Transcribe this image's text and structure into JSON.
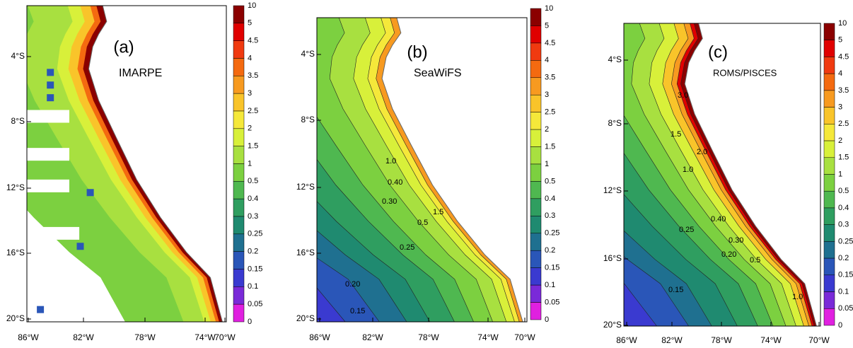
{
  "colorbar": {
    "labels": [
      "10",
      "5",
      "4.5",
      "4",
      "3.5",
      "3",
      "2.5",
      "2",
      "1.5",
      "1",
      "0.5",
      "0.4",
      "0.3",
      "0.25",
      "0.2",
      "0.15",
      "0.1",
      "0.05",
      "0"
    ],
    "colors": [
      "#8b0000",
      "#e00000",
      "#f03a10",
      "#f46a10",
      "#f79a20",
      "#f9c42a",
      "#f5e83a",
      "#d8f03a",
      "#a8e040",
      "#7cd040",
      "#4fb850",
      "#2f9e60",
      "#1f8a70",
      "#1f7090",
      "#2a56b8",
      "#3a3ad0",
      "#7a2ad8",
      "#e020e0"
    ]
  },
  "panels": [
    {
      "label": "(a)",
      "source": "IMARPE",
      "lat_ticks": [
        "4°S",
        "8°S",
        "12°S",
        "16°S",
        "20°S"
      ],
      "lon_ticks": [
        "86°W",
        "82°W",
        "78°W",
        "74°W",
        "70°W"
      ]
    },
    {
      "label": "(b)",
      "source": "SeaWiFS",
      "lat_ticks": [
        "4°S",
        "8°S",
        "12°S",
        "16°S",
        "20°S"
      ],
      "lon_ticks": [
        "86°W",
        "82°W",
        "78°W",
        "74°W",
        "70°W"
      ],
      "contour_labels": [
        "1.5",
        "1.0",
        "0.40",
        "0.30",
        "0.5",
        "0.25",
        "0.20",
        "0.15"
      ]
    },
    {
      "label": "(c)",
      "source": "ROMS/PISCES",
      "lat_ticks": [
        "4°S",
        "8°S",
        "12°S",
        "16°S",
        "20°S"
      ],
      "lon_ticks": [
        "86°W",
        "82°W",
        "78°W",
        "74°W",
        "70°W"
      ],
      "contour_labels": [
        "3.0",
        "1.5",
        "2.0",
        "1.0",
        "0.40",
        "0.30",
        "0.25",
        "0.20",
        "0.5",
        "1.0",
        "0.15"
      ]
    }
  ]
}
